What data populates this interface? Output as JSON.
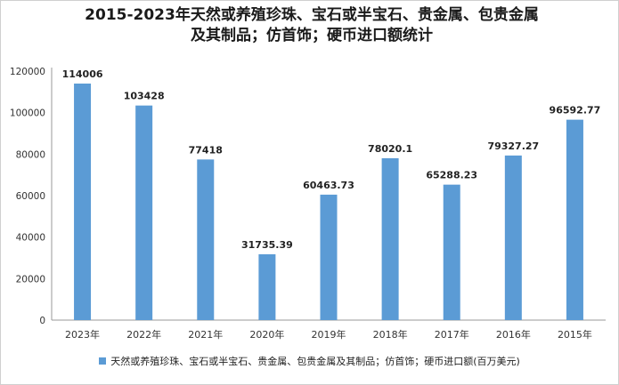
{
  "chart_data": {
    "type": "bar",
    "title_line1": "2015-2023年天然或养殖珍珠、宝石或半宝石、贵金属、包贵金属",
    "title_line2": "及其制品；仿首饰；硬币进口额统计",
    "categories": [
      "2023年",
      "2022年",
      "2021年",
      "2020年",
      "2019年",
      "2018年",
      "2017年",
      "2016年",
      "2015年"
    ],
    "series": [
      {
        "name": "天然或养殖珍珠、宝石或半宝石、贵金属、包贵金属及其制品；仿首饰；硬币进口额(百万美元)",
        "values": [
          114006,
          103428,
          77418,
          31735.39,
          60463.73,
          78020.1,
          65288.23,
          79327.27,
          96592.77
        ],
        "labels": [
          "114006",
          "103428",
          "77418",
          "31735.39",
          "60463.73",
          "78020.1",
          "65288.23",
          "79327.27",
          "96592.77"
        ]
      }
    ],
    "yticks": [
      "0",
      "20000",
      "40000",
      "60000",
      "80000",
      "100000",
      "120000"
    ],
    "ylim": [
      0,
      120000
    ],
    "grid": false,
    "legend_position": "bottom",
    "bar_color": "#5b9bd5"
  }
}
